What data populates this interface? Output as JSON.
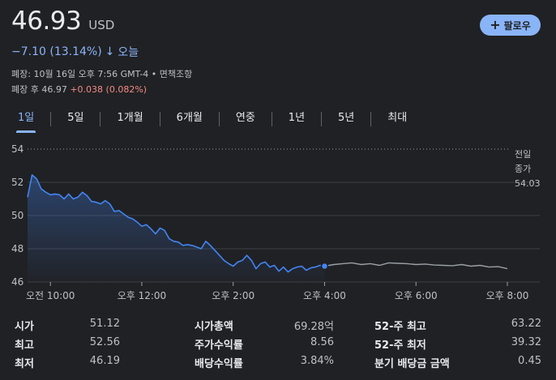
{
  "quote": {
    "price": "46.93",
    "currency": "USD",
    "change": "−7.10 (13.14%)",
    "change_arrow": "↓",
    "change_period": "오늘",
    "close_info": "폐장: 10월 16일 오후 7:56 GMT-4 • 면책조항",
    "after_hours_label": "폐장 후 46.97",
    "after_hours_change": "+0.038 (0.082%)"
  },
  "follow_button": {
    "label": "팔로우",
    "icon": "plus-icon"
  },
  "tabs": [
    {
      "label": "1일",
      "active": true
    },
    {
      "label": "5일",
      "active": false
    },
    {
      "label": "1개월",
      "active": false
    },
    {
      "label": "6개월",
      "active": false
    },
    {
      "label": "연중",
      "active": false
    },
    {
      "label": "1년",
      "active": false
    },
    {
      "label": "5년",
      "active": false
    },
    {
      "label": "최대",
      "active": false
    }
  ],
  "chart_data": {
    "type": "line",
    "ylim": [
      46,
      54.5
    ],
    "y_ticks": [
      54,
      52,
      50,
      48,
      46
    ],
    "x_tick_labels": [
      "오전 10:00",
      "오후 12:00",
      "오후 2:00",
      "오후 4:00",
      "오후 6:00",
      "오후 8:00"
    ],
    "x_tick_hours": [
      10,
      12,
      14,
      16,
      18,
      20
    ],
    "xlim": [
      9.5,
      20.0
    ],
    "previous_close": {
      "label_line1": "전일",
      "label_line2": "종가",
      "value": "54.03"
    },
    "colors": {
      "market": "#4285f4",
      "after_hours": "#9aa0a6",
      "grid": "#3c4043",
      "prev_close": "#9aa0a6"
    },
    "series": [
      {
        "x": [
          9.5,
          9.6,
          9.7,
          9.8,
          9.9,
          10.0,
          10.1,
          10.2,
          10.3,
          10.4,
          10.5,
          10.6,
          10.7,
          10.8,
          10.9,
          11.0,
          11.1,
          11.2,
          11.3,
          11.4,
          11.5,
          11.6,
          11.7,
          11.8,
          11.9,
          12.0,
          12.1,
          12.2,
          12.3,
          12.4,
          12.5,
          12.6,
          12.7,
          12.8,
          12.9,
          13.0,
          13.1,
          13.2,
          13.3,
          13.4,
          13.5,
          13.6,
          13.7,
          13.8,
          13.9,
          14.0,
          14.1,
          14.2,
          14.3,
          14.4,
          14.5,
          14.6,
          14.7,
          14.8,
          14.9,
          15.0,
          15.1,
          15.2,
          15.3,
          15.4,
          15.5,
          15.6,
          15.7,
          15.8,
          15.9,
          16.0
        ],
        "values": [
          51.1,
          52.45,
          52.2,
          51.6,
          51.4,
          51.25,
          51.3,
          51.25,
          51.0,
          51.3,
          51.0,
          51.1,
          51.4,
          51.2,
          50.85,
          50.8,
          50.7,
          50.9,
          50.7,
          50.25,
          50.3,
          50.1,
          49.9,
          49.8,
          49.6,
          49.35,
          49.45,
          49.2,
          48.9,
          49.25,
          49.1,
          48.6,
          48.45,
          48.4,
          48.2,
          48.25,
          48.2,
          48.1,
          48.0,
          48.45,
          48.2,
          47.9,
          47.6,
          47.3,
          47.1,
          46.95,
          47.2,
          47.3,
          47.6,
          47.3,
          46.8,
          47.1,
          47.2,
          46.9,
          47.0,
          46.65,
          46.9,
          46.6,
          46.8,
          46.9,
          46.95,
          46.7,
          46.85,
          46.9,
          47.0,
          46.95
        ],
        "segment": "market"
      },
      {
        "x": [
          16.0,
          16.2,
          16.4,
          16.6,
          16.8,
          17.0,
          17.2,
          17.4,
          17.6,
          17.8,
          18.0,
          18.2,
          18.4,
          18.6,
          18.8,
          19.0,
          19.2,
          19.4,
          19.6,
          19.8,
          20.0
        ],
        "values": [
          46.95,
          47.05,
          47.1,
          47.15,
          47.05,
          47.1,
          47.0,
          47.15,
          47.12,
          47.1,
          47.05,
          47.08,
          47.02,
          47.0,
          46.98,
          47.05,
          46.95,
          47.0,
          46.9,
          46.92,
          46.8
        ],
        "segment": "after_hours"
      }
    ]
  },
  "stats": [
    [
      {
        "label": "시가",
        "value": "51.12"
      },
      {
        "label": "시가총액",
        "value": "69.28억"
      },
      {
        "label": "52-주 최고",
        "value": "63.22"
      }
    ],
    [
      {
        "label": "최고",
        "value": "52.56"
      },
      {
        "label": "주가수익률",
        "value": "8.56"
      },
      {
        "label": "52-주 최저",
        "value": "39.32"
      }
    ],
    [
      {
        "label": "최저",
        "value": "46.19"
      },
      {
        "label": "배당수익률",
        "value": "3.84%"
      },
      {
        "label": "분기 배당금 금액",
        "value": "0.45"
      }
    ]
  ]
}
